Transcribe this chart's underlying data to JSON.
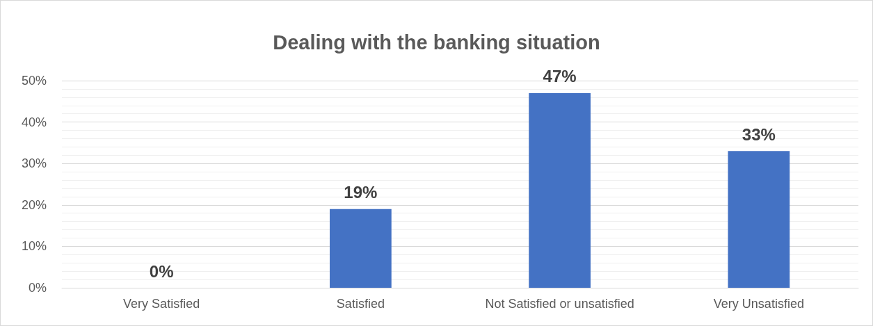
{
  "chart_data": {
    "type": "bar",
    "title": "Dealing with the banking situation",
    "categories": [
      "Very Satisfied",
      "Satisfied",
      "Not Satisfied or unsatisfied",
      "Very Unsatisfied"
    ],
    "values": [
      0,
      19,
      47,
      33
    ],
    "color": "#4472c4",
    "value_labels": [
      "0%",
      "19%",
      "47%",
      "33%"
    ],
    "ylim": [
      0,
      50
    ],
    "yticks": [
      {
        "value": 0,
        "label": "0%"
      },
      {
        "value": 10,
        "label": "10%"
      },
      {
        "value": 20,
        "label": "20%"
      },
      {
        "value": 30,
        "label": "30%"
      },
      {
        "value": 40,
        "label": "40%"
      },
      {
        "value": 50,
        "label": "50%"
      }
    ],
    "grid": true
  }
}
